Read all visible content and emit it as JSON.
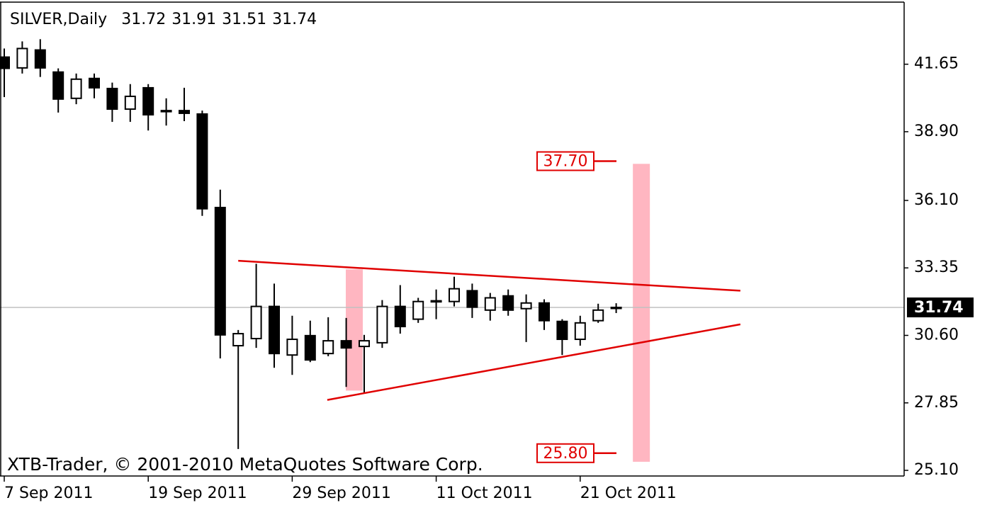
{
  "chart_data": {
    "type": "candlestick",
    "title": "SILVER,Daily",
    "watermark": "XTB-Trader, © 2001-2010 MetaQuotes Software Corp.",
    "categories": [
      "7 Sep 2011",
      null,
      null,
      null,
      null,
      null,
      null,
      null,
      "19 Sep 2011",
      null,
      null,
      null,
      null,
      null,
      null,
      null,
      "29 Sep 2011",
      null,
      null,
      null,
      null,
      null,
      null,
      null,
      "11 Oct 2011",
      null,
      null,
      null,
      null,
      null,
      null,
      null,
      "21 Oct 2011",
      null,
      null
    ],
    "open": [
      41.94,
      41.5,
      42.23,
      41.33,
      40.26,
      41.07,
      40.66,
      39.82,
      40.69,
      39.76,
      39.76,
      39.62,
      35.81,
      30.18,
      30.47,
      31.78,
      29.8,
      30.59,
      29.86,
      30.38,
      30.15,
      30.3,
      31.78,
      31.26,
      32.01,
      31.98,
      32.42,
      31.63,
      32.21,
      31.69,
      31.92,
      31.17,
      30.44,
      31.2,
      31.72
    ],
    "high": [
      42.29,
      42.58,
      42.67,
      41.48,
      41.27,
      41.27,
      40.9,
      40.84,
      40.84,
      40.26,
      40.69,
      39.76,
      36.54,
      30.82,
      33.52,
      32.71,
      31.4,
      31.2,
      31.34,
      31.31,
      30.62,
      32.04,
      32.65,
      32.13,
      32.47,
      32.99,
      32.71,
      32.33,
      32.47,
      32.27,
      32.07,
      31.26,
      31.4,
      31.89,
      31.91
    ],
    "low": [
      40.31,
      41.27,
      41.13,
      39.68,
      40.02,
      40.26,
      39.3,
      39.3,
      38.95,
      39.15,
      39.33,
      35.47,
      29.66,
      25.97,
      30.09,
      29.28,
      28.99,
      29.51,
      29.75,
      28.5,
      28.26,
      30.09,
      30.67,
      31.11,
      31.26,
      31.78,
      31.31,
      31.2,
      31.4,
      30.33,
      30.82,
      29.8,
      30.18,
      31.11,
      31.51
    ],
    "close": [
      41.48,
      42.29,
      41.5,
      40.23,
      41.04,
      40.69,
      39.82,
      40.34,
      39.59,
      39.73,
      39.65,
      35.76,
      30.62,
      30.67,
      31.78,
      29.86,
      30.44,
      29.6,
      30.38,
      30.09,
      30.38,
      31.78,
      30.96,
      31.98,
      31.98,
      32.5,
      31.75,
      32.13,
      31.63,
      31.92,
      31.2,
      30.44,
      31.11,
      31.63,
      31.74
    ],
    "up_color": "#ffffff",
    "down_color": "#000000",
    "ylim": [
      24.87,
      44.18
    ],
    "yticks": [
      41.65,
      {
        "value": 38.9,
        "label": "38.90"
      },
      {
        "value": 36.1,
        "label": "36.10"
      },
      33.35,
      {
        "value": 30.6,
        "label": "30.60"
      },
      27.85,
      {
        "value": 25.1,
        "label": "25.10"
      }
    ],
    "grid": false,
    "trendline_color": "#e00000",
    "trendlines": [
      {
        "x": [
          13,
          40.9
        ],
        "y": [
          33.64,
          32.42
        ]
      },
      {
        "x": [
          17.95,
          40.9
        ],
        "y": [
          27.97,
          31.05
        ]
      }
    ],
    "band_color": "#ffb6c1",
    "bands": [
      {
        "x": 19.45,
        "y": [
          33.29,
          28.35
        ]
      },
      {
        "x": 35.4,
        "y": [
          37.59,
          25.45
        ]
      }
    ],
    "price_levels": [
      {
        "value": 37.7,
        "label": "37.70"
      },
      {
        "value": 25.8,
        "label": "25.80"
      }
    ]
  }
}
